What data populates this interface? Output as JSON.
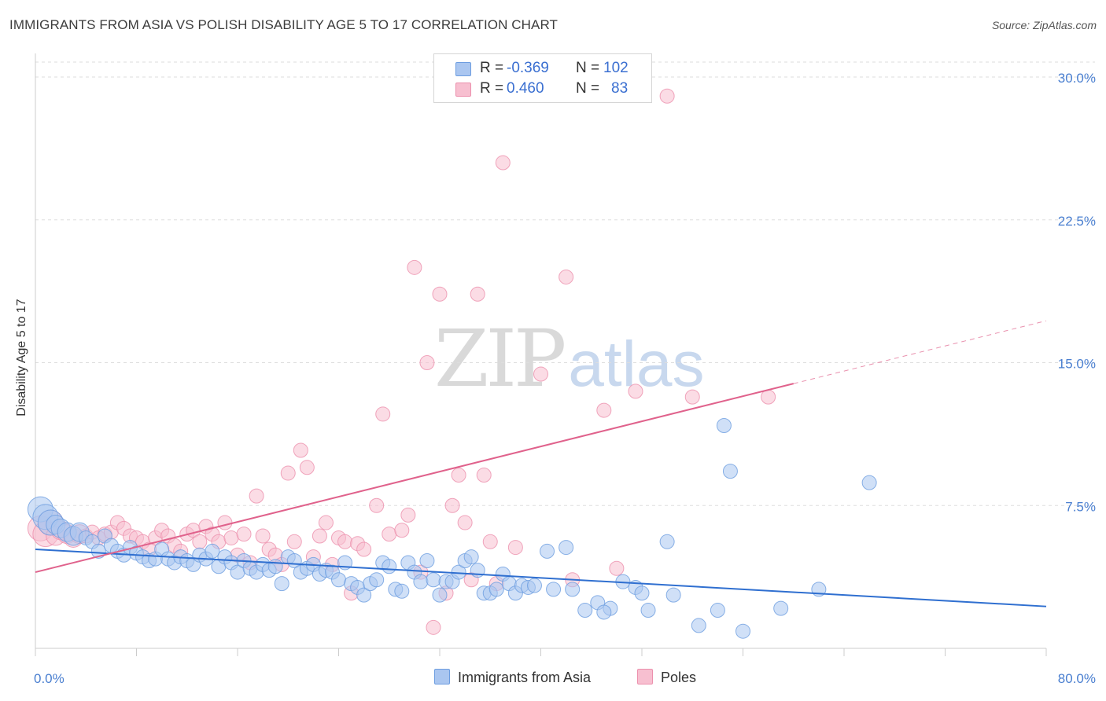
{
  "header": {
    "title": "IMMIGRANTS FROM ASIA VS POLISH DISABILITY AGE 5 TO 17 CORRELATION CHART",
    "source": "Source: ZipAtlas.com"
  },
  "watermark": {
    "part1": "ZIP",
    "part2": "atlas"
  },
  "legend_box": {
    "rows": [
      {
        "r_label": "R =",
        "r_value": "-0.369",
        "n_label": "N =",
        "n_value": "102"
      },
      {
        "r_label": "R =",
        "r_value": "0.460",
        "n_label": "N =",
        "n_value": "83"
      }
    ]
  },
  "bottom_legend": {
    "series1": "Immigrants from Asia",
    "series2": "Poles"
  },
  "colors": {
    "series1_fill": "#aac6f0",
    "series1_stroke": "#6d9de0",
    "series1_line": "#2f6fd0",
    "series2_fill": "#f7bfd0",
    "series2_stroke": "#ec90ad",
    "series2_line": "#e0628c",
    "tick_text": "#4a7fd0",
    "grid": "#dddddd"
  },
  "chart_data": {
    "type": "scatter",
    "title": "IMMIGRANTS FROM ASIA VS POLISH DISABILITY AGE 5 TO 17 CORRELATION CHART",
    "xlabel": "",
    "ylabel": "Disability Age 5 to 17",
    "xlim": [
      0,
      80
    ],
    "ylim": [
      0,
      30
    ],
    "x_tick_labels": [
      "0.0%",
      "80.0%"
    ],
    "y_ticks": [
      7.5,
      15.0,
      22.5,
      30.0
    ],
    "y_tick_labels": [
      "7.5%",
      "15.0%",
      "22.5%",
      "30.0%"
    ],
    "grid": "horizontal dashed",
    "legend_position": "top-center",
    "series": [
      {
        "name": "Immigrants from Asia",
        "r": -0.369,
        "n": 102,
        "trend": {
          "x": [
            0,
            80
          ],
          "y": [
            5.2,
            2.2
          ],
          "dashed_from": null
        },
        "points": [
          [
            0.4,
            7.3
          ],
          [
            0.8,
            6.9
          ],
          [
            1.2,
            6.6
          ],
          [
            1.6,
            6.5
          ],
          [
            2.0,
            6.3
          ],
          [
            2.5,
            6.1
          ],
          [
            3.0,
            5.9
          ],
          [
            3.5,
            6.1
          ],
          [
            4.0,
            5.8
          ],
          [
            4.5,
            5.6
          ],
          [
            5.0,
            5.1
          ],
          [
            5.5,
            5.9
          ],
          [
            6.0,
            5.4
          ],
          [
            6.5,
            5.1
          ],
          [
            7.0,
            4.9
          ],
          [
            7.5,
            5.3
          ],
          [
            8.0,
            5.0
          ],
          [
            8.5,
            4.8
          ],
          [
            9.0,
            4.6
          ],
          [
            9.5,
            4.7
          ],
          [
            10.0,
            5.2
          ],
          [
            10.5,
            4.7
          ],
          [
            11.0,
            4.5
          ],
          [
            11.5,
            4.8
          ],
          [
            12.0,
            4.6
          ],
          [
            12.5,
            4.4
          ],
          [
            13.0,
            4.9
          ],
          [
            13.5,
            4.7
          ],
          [
            14.0,
            5.1
          ],
          [
            14.5,
            4.3
          ],
          [
            15.0,
            4.8
          ],
          [
            15.5,
            4.5
          ],
          [
            16.0,
            4.0
          ],
          [
            16.5,
            4.6
          ],
          [
            17.0,
            4.2
          ],
          [
            17.5,
            4.0
          ],
          [
            18.0,
            4.4
          ],
          [
            18.5,
            4.1
          ],
          [
            19.0,
            4.3
          ],
          [
            19.5,
            3.4
          ],
          [
            20.0,
            4.8
          ],
          [
            20.5,
            4.6
          ],
          [
            21.0,
            4.0
          ],
          [
            21.5,
            4.2
          ],
          [
            22.0,
            4.4
          ],
          [
            22.5,
            3.9
          ],
          [
            23.0,
            4.1
          ],
          [
            23.5,
            4.0
          ],
          [
            24.0,
            3.6
          ],
          [
            24.5,
            4.5
          ],
          [
            25.0,
            3.4
          ],
          [
            25.5,
            3.2
          ],
          [
            26.0,
            2.8
          ],
          [
            26.5,
            3.4
          ],
          [
            27.0,
            3.6
          ],
          [
            27.5,
            4.5
          ],
          [
            28.0,
            4.3
          ],
          [
            28.5,
            3.1
          ],
          [
            29.0,
            3.0
          ],
          [
            29.5,
            4.5
          ],
          [
            30.0,
            4.0
          ],
          [
            30.5,
            3.5
          ],
          [
            31.0,
            4.6
          ],
          [
            31.5,
            3.6
          ],
          [
            32.0,
            2.8
          ],
          [
            32.5,
            3.5
          ],
          [
            33.0,
            3.5
          ],
          [
            33.5,
            4.0
          ],
          [
            34.0,
            4.6
          ],
          [
            34.5,
            4.8
          ],
          [
            35.0,
            4.1
          ],
          [
            35.5,
            2.9
          ],
          [
            36.0,
            2.9
          ],
          [
            36.5,
            3.1
          ],
          [
            37.0,
            3.9
          ],
          [
            37.5,
            3.4
          ],
          [
            38.0,
            2.9
          ],
          [
            38.5,
            3.3
          ],
          [
            39.0,
            3.2
          ],
          [
            39.5,
            3.3
          ],
          [
            40.5,
            5.1
          ],
          [
            41.0,
            3.1
          ],
          [
            42.0,
            5.3
          ],
          [
            42.5,
            3.1
          ],
          [
            43.5,
            2.0
          ],
          [
            44.5,
            2.4
          ],
          [
            45.5,
            2.1
          ],
          [
            45.0,
            1.9
          ],
          [
            46.5,
            3.5
          ],
          [
            47.5,
            3.2
          ],
          [
            48.0,
            2.9
          ],
          [
            48.5,
            2.0
          ],
          [
            50.0,
            5.6
          ],
          [
            50.5,
            2.8
          ],
          [
            52.5,
            1.2
          ],
          [
            54.0,
            2.0
          ],
          [
            54.5,
            11.7
          ],
          [
            55.0,
            9.3
          ],
          [
            56.0,
            0.9
          ],
          [
            59.0,
            2.1
          ],
          [
            62.0,
            3.1
          ],
          [
            66.0,
            8.7
          ]
        ]
      },
      {
        "name": "Poles",
        "r": 0.46,
        "n": 83,
        "trend": {
          "x": [
            0,
            60,
            80
          ],
          "y": [
            4.0,
            13.9,
            17.2
          ],
          "dashed_from": 60
        },
        "points": [
          [
            0.4,
            6.3
          ],
          [
            0.8,
            6.0
          ],
          [
            1.2,
            6.6
          ],
          [
            1.6,
            5.9
          ],
          [
            2.0,
            6.2
          ],
          [
            2.5,
            6.0
          ],
          [
            3.0,
            5.8
          ],
          [
            3.5,
            6.0
          ],
          [
            4.0,
            5.9
          ],
          [
            4.5,
            6.1
          ],
          [
            5.0,
            5.8
          ],
          [
            5.5,
            6.0
          ],
          [
            6.0,
            6.1
          ],
          [
            6.5,
            6.6
          ],
          [
            7.0,
            6.3
          ],
          [
            7.5,
            5.9
          ],
          [
            8.0,
            5.8
          ],
          [
            8.5,
            5.6
          ],
          [
            9.0,
            5.2
          ],
          [
            9.5,
            5.8
          ],
          [
            10.0,
            6.2
          ],
          [
            10.5,
            5.9
          ],
          [
            11.0,
            5.4
          ],
          [
            11.5,
            5.1
          ],
          [
            12.0,
            6.0
          ],
          [
            12.5,
            6.2
          ],
          [
            13.0,
            5.6
          ],
          [
            13.5,
            6.4
          ],
          [
            14.0,
            6.0
          ],
          [
            14.5,
            5.6
          ],
          [
            15.0,
            6.6
          ],
          [
            15.5,
            5.8
          ],
          [
            16.0,
            4.9
          ],
          [
            16.5,
            6.0
          ],
          [
            17.0,
            4.5
          ],
          [
            17.5,
            8.0
          ],
          [
            18.0,
            5.9
          ],
          [
            18.5,
            5.2
          ],
          [
            19.0,
            4.9
          ],
          [
            19.5,
            4.4
          ],
          [
            20.0,
            9.2
          ],
          [
            20.5,
            5.6
          ],
          [
            21.0,
            10.4
          ],
          [
            21.5,
            9.5
          ],
          [
            22.0,
            4.8
          ],
          [
            22.5,
            5.9
          ],
          [
            23.0,
            6.6
          ],
          [
            23.5,
            4.4
          ],
          [
            24.0,
            5.8
          ],
          [
            24.5,
            5.6
          ],
          [
            25.0,
            2.9
          ],
          [
            25.5,
            5.5
          ],
          [
            26.0,
            5.2
          ],
          [
            27.0,
            7.5
          ],
          [
            27.5,
            12.3
          ],
          [
            28.0,
            6.0
          ],
          [
            29.0,
            6.2
          ],
          [
            29.5,
            7.0
          ],
          [
            30.0,
            20.0
          ],
          [
            30.5,
            4.0
          ],
          [
            31.0,
            15.0
          ],
          [
            31.5,
            1.1
          ],
          [
            32.0,
            18.6
          ],
          [
            32.5,
            2.9
          ],
          [
            33.0,
            7.5
          ],
          [
            33.5,
            9.1
          ],
          [
            34.0,
            6.6
          ],
          [
            34.5,
            3.6
          ],
          [
            35.0,
            18.6
          ],
          [
            35.5,
            9.1
          ],
          [
            36.0,
            5.6
          ],
          [
            36.5,
            3.4
          ],
          [
            37.0,
            25.5
          ],
          [
            40.0,
            14.4
          ],
          [
            42.0,
            19.5
          ],
          [
            42.5,
            3.6
          ],
          [
            45.0,
            12.5
          ],
          [
            46.0,
            4.2
          ],
          [
            47.5,
            13.5
          ],
          [
            50.0,
            29.0
          ],
          [
            52.0,
            13.2
          ],
          [
            58.0,
            13.2
          ],
          [
            38.0,
            5.3
          ]
        ]
      }
    ]
  }
}
